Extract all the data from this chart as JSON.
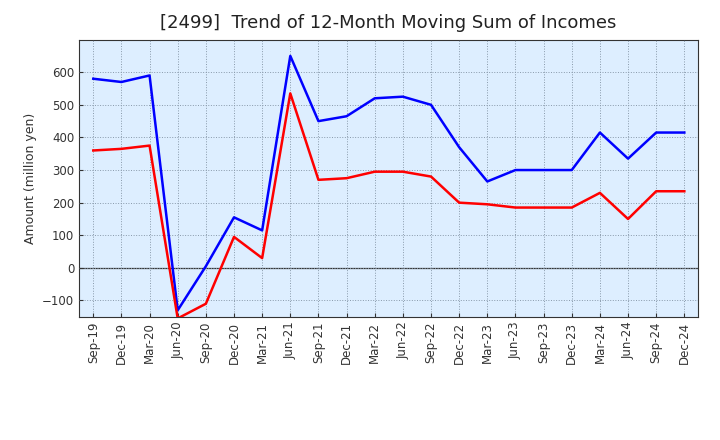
{
  "title": "[2499]  Trend of 12-Month Moving Sum of Incomes",
  "ylabel": "Amount (million yen)",
  "plot_bg_color": "#ddeeff",
  "fig_bg_color": "#ffffff",
  "grid_color": "#8899aa",
  "x_labels": [
    "Sep-19",
    "Dec-19",
    "Mar-20",
    "Jun-20",
    "Sep-20",
    "Dec-20",
    "Mar-21",
    "Jun-21",
    "Sep-21",
    "Dec-21",
    "Mar-22",
    "Jun-22",
    "Sep-22",
    "Dec-22",
    "Mar-23",
    "Jun-23",
    "Sep-23",
    "Dec-23",
    "Mar-24",
    "Jun-24",
    "Sep-24",
    "Dec-24"
  ],
  "ordinary_income": [
    580,
    570,
    590,
    -130,
    5,
    155,
    115,
    650,
    450,
    465,
    520,
    525,
    500,
    370,
    265,
    300,
    300,
    300,
    415,
    335,
    415,
    415
  ],
  "net_income": [
    360,
    365,
    375,
    -155,
    -110,
    95,
    30,
    535,
    270,
    275,
    295,
    295,
    280,
    200,
    195,
    185,
    185,
    185,
    230,
    150,
    235,
    235
  ],
  "ordinary_color": "#0000ff",
  "net_color": "#ff0000",
  "ylim": [
    -150,
    700
  ],
  "yticks": [
    -100,
    0,
    100,
    200,
    300,
    400,
    500,
    600
  ],
  "line_width": 1.8,
  "title_fontsize": 13,
  "legend_fontsize": 10,
  "tick_fontsize": 8.5,
  "ylabel_fontsize": 9
}
